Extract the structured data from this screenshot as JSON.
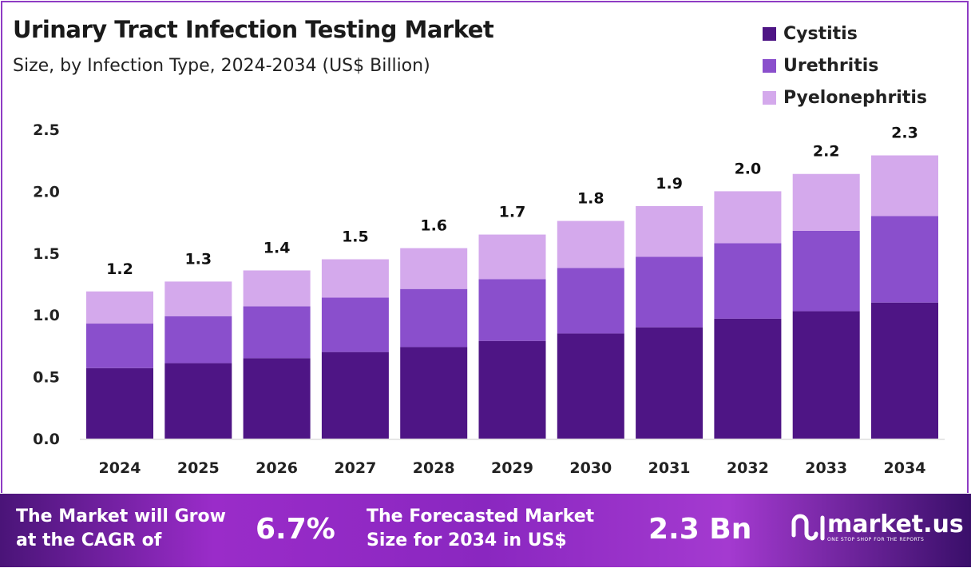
{
  "header": {
    "title": "Urinary Tract Infection Testing Market",
    "subtitle": "Size, by Infection Type, 2024-2034 (US$ Billion)"
  },
  "colors": {
    "Cystitis": "#4e1585",
    "Urethritis": "#8a4fcc",
    "Pyelonephritis": "#d4a9ec"
  },
  "chart_data": {
    "type": "bar",
    "stacked": true,
    "title": "Urinary Tract Infection Testing Market",
    "subtitle": "Size, by Infection Type, 2024-2034 (US$ Billion)",
    "categories": [
      "2024",
      "2025",
      "2026",
      "2027",
      "2028",
      "2029",
      "2030",
      "2031",
      "2032",
      "2033",
      "2034"
    ],
    "series": [
      {
        "name": "Cystitis",
        "values": [
          0.57,
          0.61,
          0.65,
          0.7,
          0.74,
          0.79,
          0.85,
          0.9,
          0.97,
          1.03,
          1.1
        ]
      },
      {
        "name": "Urethritis",
        "values": [
          0.36,
          0.38,
          0.42,
          0.44,
          0.47,
          0.5,
          0.53,
          0.57,
          0.61,
          0.65,
          0.7
        ]
      },
      {
        "name": "Pyelonephritis",
        "values": [
          0.26,
          0.28,
          0.29,
          0.31,
          0.33,
          0.36,
          0.38,
          0.41,
          0.42,
          0.46,
          0.49
        ]
      }
    ],
    "totals_labels": [
      "1.2",
      "1.3",
      "1.4",
      "1.5",
      "1.6",
      "1.7",
      "1.8",
      "1.9",
      "2.0",
      "2.2",
      "2.3"
    ],
    "yticks": [
      "0.0",
      "0.5",
      "1.0",
      "1.5",
      "2.0",
      "2.5"
    ],
    "ylim": [
      0,
      2.5
    ],
    "grid": false,
    "legend": "top-right"
  },
  "footer": {
    "cagr_text_1": "The Market will Grow",
    "cagr_text_2": "at the CAGR of",
    "cagr_value": "6.7%",
    "forecast_text_1": "The Forecasted Market",
    "forecast_text_2": "Size for 2034 in US$",
    "forecast_value": "2.3 Bn",
    "logo_name": "market.us",
    "logo_tagline": "ONE STOP SHOP FOR THE REPORTS"
  }
}
